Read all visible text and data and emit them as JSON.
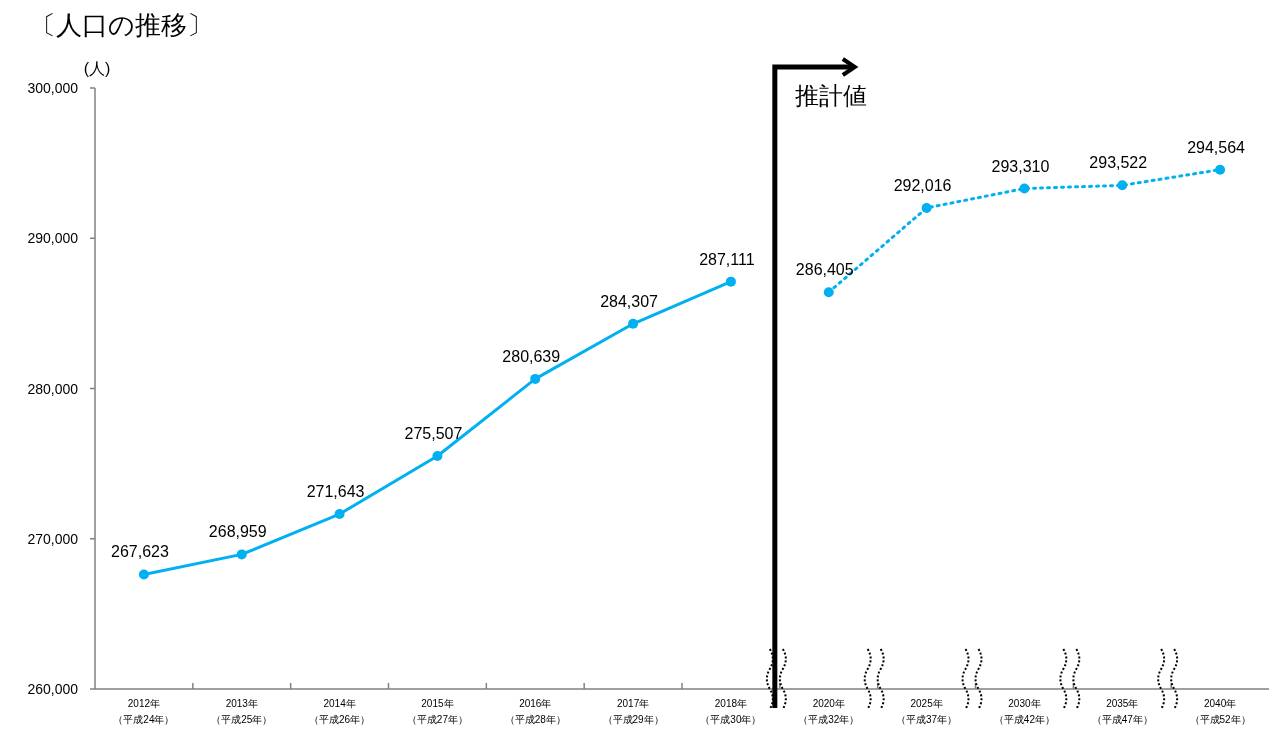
{
  "chart_data": {
    "type": "line",
    "title": "〔人口の推移〕",
    "ylabel": "(人)",
    "categories": [
      "2012年（平成24年）",
      "2013年（平成25年）",
      "2014年（平成26年）",
      "2015年（平成27年）",
      "2016年（平成28年）",
      "2017年（平成29年）",
      "2018年（平成30年）",
      "2020年（平成32年）",
      "2025年（平成37年）",
      "2030年（平成42年）",
      "2035年（平成47年）",
      "2040年（平成52年）"
    ],
    "series": [
      {
        "color": "#00b0f0",
        "line_style": "solid",
        "values": [
          267623,
          268959,
          271643,
          275507,
          280639,
          284307,
          287111,
          null,
          null,
          null,
          null,
          null
        ],
        "value_labels": [
          "267,623",
          "268,959",
          "271,643",
          "275,507",
          "280,639",
          "284,307",
          "287,111",
          null,
          null,
          null,
          null,
          null
        ]
      },
      {
        "color": "#00b0f0",
        "line_style": "dotted",
        "values": [
          null,
          null,
          null,
          null,
          null,
          null,
          null,
          286405,
          292016,
          293310,
          293522,
          294564
        ],
        "value_labels": [
          null,
          null,
          null,
          null,
          null,
          null,
          null,
          "286,405",
          "292,016",
          "293,310",
          "293,522",
          "294,564"
        ]
      }
    ],
    "ylim": [
      260000,
      300000
    ],
    "yticks": [
      {
        "value": 260000,
        "label": "260,000"
      },
      {
        "value": 270000,
        "label": "270,000"
      },
      {
        "value": 280000,
        "label": "280,000"
      },
      {
        "value": 290000,
        "label": "290,000"
      },
      {
        "value": 300000,
        "label": "300,000"
      }
    ],
    "grid": false,
    "marker": "circle",
    "annotations": [
      "推計値"
    ]
  }
}
